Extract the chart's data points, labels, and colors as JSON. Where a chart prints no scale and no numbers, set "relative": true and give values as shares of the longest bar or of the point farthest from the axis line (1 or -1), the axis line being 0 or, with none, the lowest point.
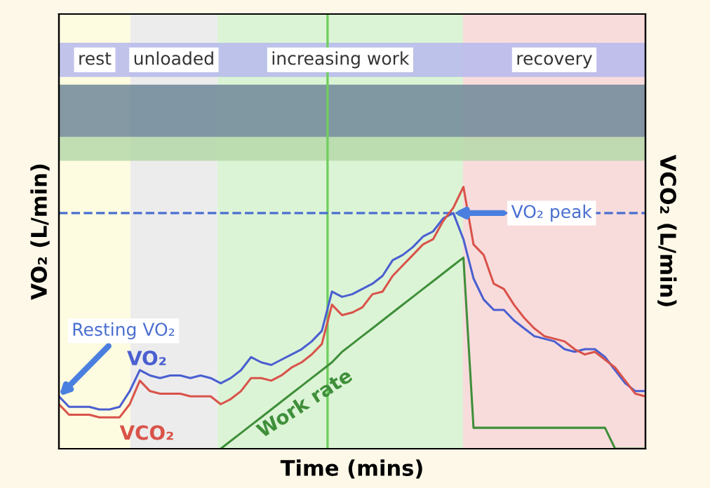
{
  "chart_data": {
    "type": "line",
    "relative": true,
    "xlabel": "Time (mins)",
    "ylabel": "VO₂ (L/min)",
    "y2label": "VCO₂ (L/min)",
    "categories": [
      null,
      null,
      null,
      null,
      null,
      null,
      null,
      null,
      null,
      null,
      null,
      null,
      null,
      null,
      null,
      null,
      null,
      null,
      null,
      null,
      null,
      null,
      null,
      null,
      null,
      null,
      null,
      null,
      null,
      null,
      null,
      null,
      null,
      null,
      null,
      null,
      null,
      null,
      null,
      null,
      null,
      null,
      null,
      null,
      null,
      null,
      null,
      null,
      null,
      null,
      null,
      null,
      null,
      null,
      null,
      null,
      null,
      null,
      null
    ],
    "series": [
      {
        "name": "VO₂",
        "color": "#4a5fd0",
        "values": [
          0.2,
          0.16,
          0.16,
          0.16,
          0.15,
          0.15,
          0.16,
          0.22,
          0.3,
          0.28,
          0.27,
          0.28,
          0.28,
          0.27,
          0.28,
          0.27,
          0.25,
          0.27,
          0.3,
          0.35,
          0.33,
          0.32,
          0.34,
          0.36,
          0.38,
          0.41,
          0.45,
          0.6,
          0.58,
          0.59,
          0.61,
          0.63,
          0.66,
          0.72,
          0.74,
          0.77,
          0.81,
          0.83,
          0.88,
          0.9,
          0.8,
          0.65,
          0.57,
          0.53,
          0.53,
          0.49,
          0.46,
          0.43,
          0.42,
          0.41,
          0.38,
          0.37,
          0.38,
          0.38,
          0.35,
          0.3,
          0.25,
          0.22,
          0.22
        ]
      },
      {
        "name": "VCO₂",
        "color": "#d9534a",
        "values": [
          0.17,
          0.13,
          0.13,
          0.13,
          0.12,
          0.12,
          0.12,
          0.17,
          0.26,
          0.22,
          0.21,
          0.21,
          0.21,
          0.2,
          0.2,
          0.2,
          0.17,
          0.19,
          0.22,
          0.27,
          0.27,
          0.26,
          0.28,
          0.31,
          0.33,
          0.36,
          0.4,
          0.55,
          0.51,
          0.52,
          0.54,
          0.59,
          0.6,
          0.66,
          0.7,
          0.74,
          0.78,
          0.8,
          0.87,
          0.92,
          1,
          0.78,
          0.74,
          0.63,
          0.61,
          0.55,
          0.5,
          0.46,
          0.43,
          0.42,
          0.41,
          0.38,
          0.36,
          0.37,
          0.34,
          0.31,
          0.26,
          0.21,
          0.2
        ]
      },
      {
        "name": "Work rate",
        "color": "#3f8f3a",
        "values": [
          null,
          null,
          null,
          null,
          null,
          null,
          null,
          null,
          null,
          null,
          null,
          null,
          null,
          null,
          null,
          null,
          0,
          0.03,
          0.06,
          0.09,
          0.12,
          0.15,
          0.18,
          0.21,
          0.24,
          0.27,
          0.3,
          0.33,
          0.37,
          0.4,
          0.43,
          0.46,
          0.49,
          0.52,
          0.55,
          0.58,
          0.61,
          0.64,
          0.67,
          0.7,
          0.73,
          0.08,
          0.08,
          0.08,
          0.08,
          0.08,
          0.08,
          0.08,
          0.08,
          0.08,
          0.08,
          0.08,
          0.08,
          0.08,
          0.08,
          0,
          0,
          0,
          0
        ]
      }
    ],
    "ref_lines": [
      {
        "axis": "y",
        "value": 0.9,
        "color": "#4a6fd0",
        "line_style": "dashed"
      }
    ],
    "annotations": [
      "rest",
      "unloaded",
      "increasing work",
      "recovery",
      "Resting VO₂",
      "VO₂ peak"
    ]
  }
}
